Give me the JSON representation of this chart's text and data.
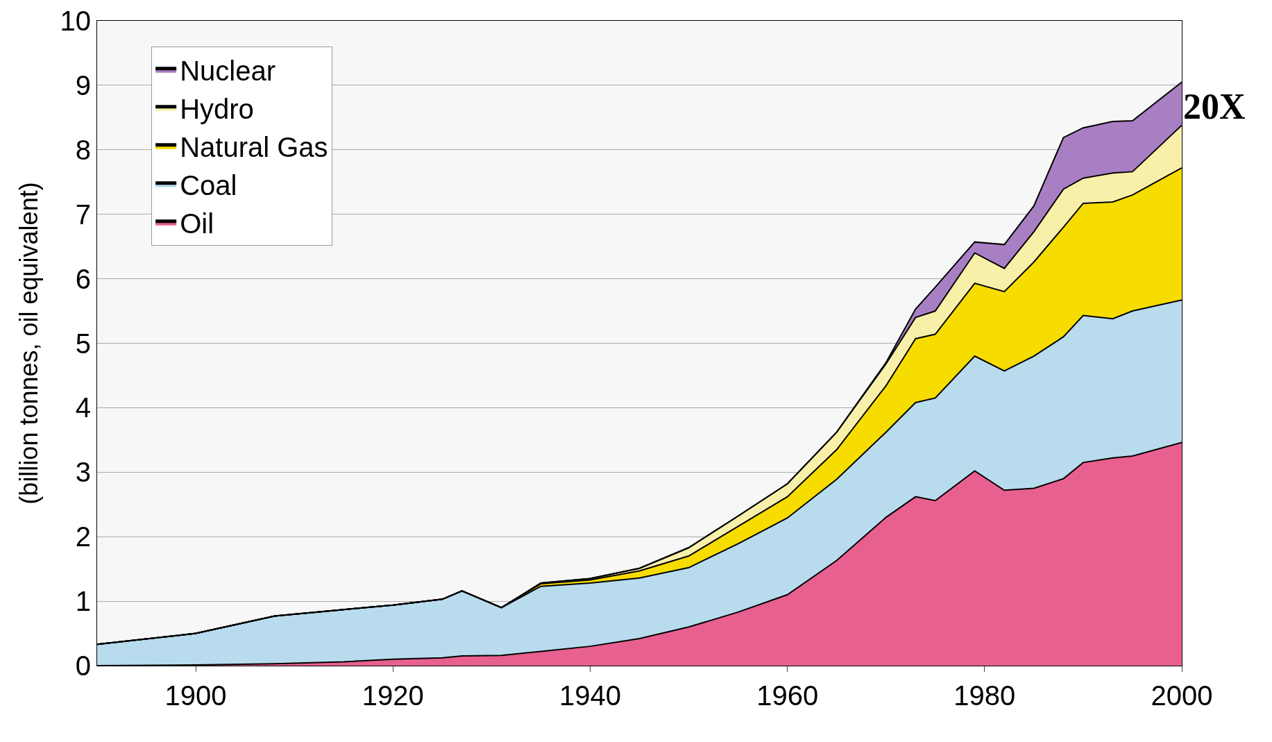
{
  "chart_data": {
    "type": "area",
    "stacked": true,
    "ylabel": "(billion tonnes, oil equivalent)",
    "x": [
      1890,
      1900,
      1908,
      1915,
      1920,
      1925,
      1927,
      1931,
      1935,
      1940,
      1945,
      1950,
      1955,
      1960,
      1965,
      1970,
      1973,
      1975,
      1979,
      1982,
      1985,
      1988,
      1990,
      1993,
      1995,
      2000
    ],
    "series": [
      {
        "name": "Oil",
        "color": "#e8608f",
        "values": [
          0,
          0.01,
          0.03,
          0.06,
          0.1,
          0.12,
          0.15,
          0.16,
          0.22,
          0.3,
          0.42,
          0.6,
          0.83,
          1.1,
          1.63,
          2.3,
          2.62,
          2.56,
          3.02,
          2.72,
          2.75,
          2.9,
          3.15,
          3.22,
          3.25,
          3.46
        ]
      },
      {
        "name": "Coal",
        "color": "#b8dcee",
        "values": [
          0.33,
          0.49,
          0.74,
          0.81,
          0.84,
          0.91,
          1.01,
          0.74,
          1.01,
          0.98,
          0.94,
          0.92,
          1.06,
          1.19,
          1.26,
          1.32,
          1.46,
          1.59,
          1.78,
          1.85,
          2.05,
          2.2,
          2.28,
          2.16,
          2.25,
          2.21
        ]
      },
      {
        "name": "Natural Gas",
        "color": "#f7dc00",
        "values": [
          0,
          0,
          0,
          0,
          0,
          0,
          0,
          0,
          0.04,
          0.05,
          0.11,
          0.18,
          0.27,
          0.33,
          0.46,
          0.72,
          0.99,
          0.99,
          1.13,
          1.23,
          1.46,
          1.7,
          1.74,
          1.81,
          1.8,
          2.05
        ]
      },
      {
        "name": "Hydro",
        "color": "#f8f0a8",
        "values": [
          0,
          0,
          0,
          0,
          0,
          0,
          0,
          0,
          0.01,
          0.02,
          0.04,
          0.13,
          0.16,
          0.2,
          0.27,
          0.34,
          0.33,
          0.36,
          0.47,
          0.36,
          0.47,
          0.59,
          0.39,
          0.45,
          0.36,
          0.66
        ]
      },
      {
        "name": "Nuclear",
        "color": "#a97fc4",
        "values": [
          0,
          0,
          0,
          0,
          0,
          0,
          0,
          0,
          0,
          0,
          0,
          0,
          0,
          0,
          0,
          0.02,
          0.13,
          0.37,
          0.17,
          0.37,
          0.4,
          0.8,
          0.78,
          0.8,
          0.79,
          0.67
        ]
      }
    ],
    "xlim": [
      1890,
      2000
    ],
    "xticks": [
      1900,
      1920,
      1940,
      1960,
      1980,
      2000
    ],
    "ylim": [
      0,
      10
    ],
    "yticks": [
      0,
      1,
      2,
      3,
      4,
      5,
      6,
      7,
      8,
      9,
      10
    ],
    "grid": "y",
    "legend": "top left",
    "annotations": [
      {
        "text": "20X",
        "x": 2000,
        "y": 9
      }
    ]
  }
}
